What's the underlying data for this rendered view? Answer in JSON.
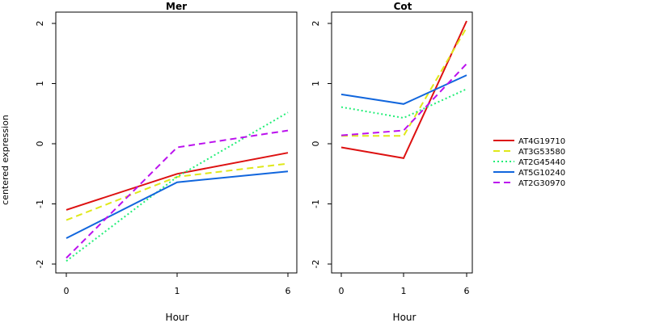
{
  "figure": {
    "ylabel": "centered expression"
  },
  "chart_data": [
    {
      "type": "line",
      "title": "Mer",
      "xlabel": "Hour",
      "ylabel": "centered expression",
      "categories": [
        "0",
        "1",
        "6"
      ],
      "ylim": [
        -2.1,
        2.1
      ],
      "yticks": [
        -2,
        -1,
        0,
        1,
        2
      ],
      "grid": false,
      "series": [
        {
          "name": "AT4G19710",
          "color": "#dd1111",
          "dash": "solid",
          "values": [
            -1.1,
            -0.5,
            -0.15
          ]
        },
        {
          "name": "AT3G53580",
          "color": "#dfe81a",
          "dash": "dashed",
          "values": [
            -1.27,
            -0.55,
            -0.33
          ]
        },
        {
          "name": "AT2G45440",
          "color": "#22ee77",
          "dash": "dotted",
          "values": [
            -1.95,
            -0.55,
            0.52
          ]
        },
        {
          "name": "AT5G10240",
          "color": "#1166dd",
          "dash": "solid",
          "values": [
            -1.57,
            -0.64,
            -0.46
          ]
        },
        {
          "name": "AT2G30970",
          "color": "#bb11ee",
          "dash": "dashed",
          "values": [
            -1.9,
            -0.06,
            0.22
          ]
        }
      ]
    },
    {
      "type": "line",
      "title": "Cot",
      "xlabel": "Hour",
      "ylabel": "",
      "categories": [
        "0",
        "1",
        "6"
      ],
      "ylim": [
        -2.1,
        2.1
      ],
      "yticks": [
        -2,
        -1,
        0,
        1,
        2
      ],
      "grid": false,
      "series": [
        {
          "name": "AT4G19710",
          "color": "#dd1111",
          "dash": "solid",
          "values": [
            -0.06,
            -0.24,
            2.04
          ]
        },
        {
          "name": "AT3G53580",
          "color": "#dfe81a",
          "dash": "dashed",
          "values": [
            0.13,
            0.13,
            1.93
          ]
        },
        {
          "name": "AT2G45440",
          "color": "#22ee77",
          "dash": "dotted",
          "values": [
            0.61,
            0.43,
            0.91
          ]
        },
        {
          "name": "AT5G10240",
          "color": "#1166dd",
          "dash": "solid",
          "values": [
            0.82,
            0.66,
            1.14
          ]
        },
        {
          "name": "AT2G30970",
          "color": "#bb11ee",
          "dash": "dashed",
          "values": [
            0.14,
            0.22,
            1.33
          ]
        }
      ]
    }
  ],
  "legend": {
    "placement": "right",
    "entries": [
      {
        "label": "AT4G19710",
        "color": "#dd1111",
        "dash": "solid"
      },
      {
        "label": "AT3G53580",
        "color": "#dfe81a",
        "dash": "dashed"
      },
      {
        "label": "AT2G45440",
        "color": "#22ee77",
        "dash": "dotted"
      },
      {
        "label": "AT5G10240",
        "color": "#1166dd",
        "dash": "solid"
      },
      {
        "label": "AT2G30970",
        "color": "#bb11ee",
        "dash": "dashed"
      }
    ]
  }
}
